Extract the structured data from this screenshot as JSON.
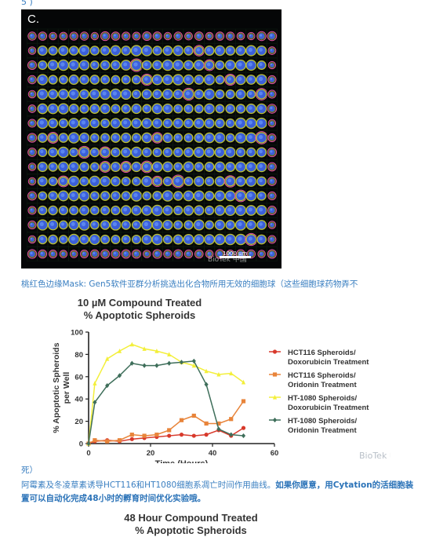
{
  "top_fragment": "5 )",
  "microscopy": {
    "panel_label": "C.",
    "scale_label": "1000 µm",
    "watermark": "BioTek 中国",
    "colors": {
      "background": "#050607",
      "spheroid_core": "#3b5fd9",
      "spheroid_ring": "#d8e03a",
      "mask": "#e04ea8"
    }
  },
  "caption_mask": "桃红色边缘Mask: Gen5软件亚群分析挑选出化合物所用无效的细胞球（这些细胞球药物弄不",
  "chart_data": {
    "type": "line",
    "title": "10 µM Compound Treated",
    "subtitle": "% Apoptotic Spheroids",
    "xlabel": "Time (Hours)",
    "ylabel": "% Apoptotic Spheroids per Well",
    "xlim": [
      0,
      60
    ],
    "ylim": [
      0,
      100
    ],
    "xticks": [
      0,
      20,
      40,
      60
    ],
    "yticks": [
      0,
      20,
      40,
      60,
      80,
      100
    ],
    "legend_position": "right",
    "watermark": "BioTek 中国",
    "series": [
      {
        "name": "HCT116 Spheroids/ Doxorubicin Treatment",
        "legend_lines": [
          "HCT116 Spheroids/",
          "Doxorubicin Treatment"
        ],
        "color": "#d8392b",
        "marker": "circle",
        "x": [
          0,
          2,
          6,
          10,
          14,
          18,
          22,
          26,
          30,
          34,
          38,
          42,
          46,
          50
        ],
        "y": [
          0,
          2,
          3,
          2,
          4,
          5,
          6,
          7,
          8,
          7,
          8,
          12,
          7,
          14
        ]
      },
      {
        "name": "HCT116 Spheroids/ Oridonin Treatment",
        "legend_lines": [
          "HCT116 Spheroids/",
          "Oridonin Treatment"
        ],
        "color": "#e8843a",
        "marker": "square",
        "x": [
          0,
          2,
          6,
          10,
          14,
          18,
          22,
          26,
          30,
          34,
          38,
          42,
          46,
          50
        ],
        "y": [
          0,
          3,
          2,
          3,
          8,
          7,
          8,
          12,
          21,
          25,
          18,
          18,
          22,
          38
        ]
      },
      {
        "name": "HT-1080 Spheroids/ Doxorubicin Treatment",
        "legend_lines": [
          "HT-1080 Spheroids/",
          "Doxorubicin Treatment"
        ],
        "color": "#f3ef3a",
        "marker": "triangle",
        "x": [
          0,
          2,
          6,
          10,
          14,
          18,
          22,
          26,
          30,
          34,
          38,
          42,
          46,
          50
        ],
        "y": [
          0,
          54,
          76,
          83,
          89,
          85,
          83,
          80,
          73,
          70,
          65,
          62,
          63,
          55
        ]
      },
      {
        "name": "HT-1080 Spheroids/ Oridonin Treatment",
        "legend_lines": [
          "HT-1080 Spheroids/",
          "Oridonin Treatment"
        ],
        "color": "#3e6e5a",
        "marker": "diamond",
        "x": [
          0,
          2,
          6,
          10,
          14,
          18,
          22,
          26,
          30,
          34,
          38,
          42,
          46,
          50
        ],
        "y": [
          0,
          37,
          52,
          61,
          72,
          70,
          70,
          72,
          73,
          74,
          53,
          13,
          8,
          7
        ]
      }
    ]
  },
  "caption_end": "死）",
  "caption_desc_plain": "阿霉素及冬凌草素诱导HCT116和HT1080细胞系凋亡时间作用曲线。",
  "caption_desc_bold": "如果你愿意，用Cytation的活细胞装置可以自动化完成48小时的孵育时间优化实验哦。",
  "chart2": {
    "title": "48 Hour Compound Treated",
    "subtitle": "% Apoptotic Spheroids"
  }
}
